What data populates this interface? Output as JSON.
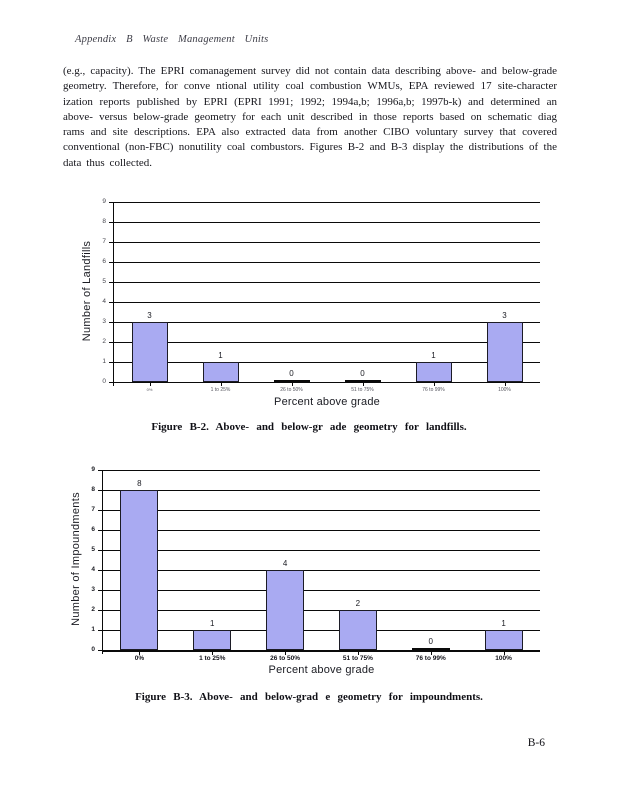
{
  "page": {
    "header": "Appendix B Waste Management Units",
    "page_number": "B-6"
  },
  "paragraph": "(e.g., capacity). The EPRI comanagement survey did not contain data describing above- and below-grade geometry. Therefore, for conve ntional utility coal combustion WMUs, EPA reviewed 17 site-character ization reports published by EPRI (EPRI 1991; 1992; 1994a,b; 1996a,b; 1997b-k) and determined an above- versus below-grade geometry for each unit described in those reports based on schematic diag rams and site descriptions. EPA also extracted data from another CIBO voluntary survey that covered conventional (non-FBC) nonutility coal combustors. Figures B-2 and B-3 display the distributions of the data thus collected.",
  "chart_data": [
    {
      "type": "bar",
      "title": "",
      "categories": [
        "0%",
        "1 to 25%",
        "26 to 50%",
        "51 to 75%",
        "76 to 99%",
        "100%"
      ],
      "values": [
        3,
        1,
        0,
        0,
        1,
        3
      ],
      "xlabel": "Percent above grade",
      "ylabel": "Number of Landfills",
      "ylim": [
        0,
        9
      ],
      "yticks": [
        0,
        1,
        2,
        3,
        4,
        5,
        6,
        7,
        8,
        9
      ],
      "grid": true,
      "legend": false,
      "bar_color": "#a9aaf2",
      "caption": "Figure B-2. Above- and below-gr ade geometry for landfills."
    },
    {
      "type": "bar",
      "title": "",
      "categories": [
        "0%",
        "1 to 25%",
        "26 to 50%",
        "51 to 75%",
        "76 to 99%",
        "100%"
      ],
      "values": [
        8,
        1,
        4,
        2,
        0,
        1
      ],
      "xlabel": "Percent above grade",
      "ylabel": "Number of Impoundments",
      "ylim": [
        0,
        9
      ],
      "yticks": [
        0,
        1,
        2,
        3,
        4,
        5,
        6,
        7,
        8,
        9
      ],
      "grid": true,
      "legend": false,
      "bar_color": "#a9aaf2",
      "caption": "Figure B-3. Above- and below-grad e geometry for impoundments."
    }
  ]
}
